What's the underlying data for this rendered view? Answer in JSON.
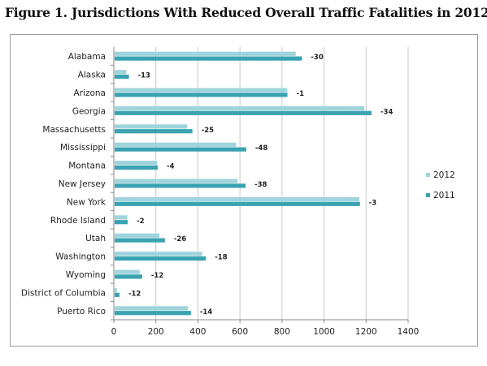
{
  "figure": {
    "title": "Figure 1.  Jurisdictions With Reduced Overall Traffic Fatalities in 2012"
  },
  "chart_data": {
    "type": "bar",
    "orientation": "horizontal",
    "categories": [
      "Alabama",
      "Alaska",
      "Arizona",
      "Georgia",
      "Massachusetts",
      "Mississippi",
      "Montana",
      "New Jersey",
      "New York",
      "Rhode Island",
      "Utah",
      "Washington",
      "Wyoming",
      "District of Columbia",
      "Puerto Rico"
    ],
    "series": [
      {
        "name": "2012",
        "color": "#9fd4dc",
        "values": [
          865,
          59,
          825,
          1192,
          349,
          582,
          205,
          589,
          1168,
          64,
          217,
          420,
          123,
          15,
          353
        ]
      },
      {
        "name": "2011",
        "color": "#3aa3b2",
        "values": [
          895,
          72,
          826,
          1226,
          374,
          630,
          209,
          627,
          1171,
          66,
          243,
          438,
          135,
          27,
          367
        ]
      }
    ],
    "data_labels": [
      "-30",
      "-13",
      "-1",
      "-34",
      "-25",
      "-48",
      "-4",
      "-38",
      "-3",
      "-2",
      "-26",
      "-18",
      "-12",
      "-12",
      "-14"
    ],
    "xlim": [
      0,
      1400
    ],
    "xticks": [
      0,
      200,
      400,
      600,
      800,
      1000,
      1200,
      1400
    ],
    "grid": "vertical",
    "legend_position": "right"
  }
}
